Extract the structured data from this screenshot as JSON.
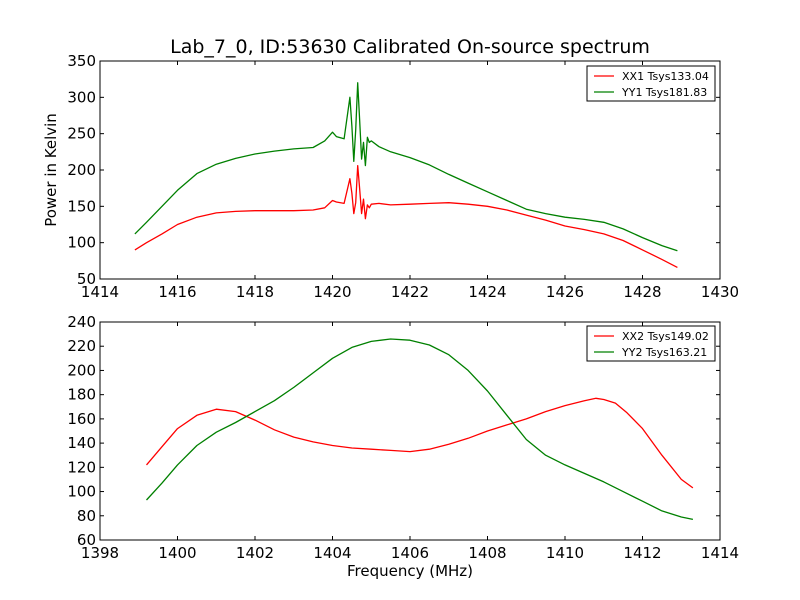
{
  "figure": {
    "title": "Lab_7_0, ID:53630 Calibrated On-source spectrum"
  },
  "chart_data": [
    {
      "type": "line",
      "xlabel": "",
      "ylabel": "Power in Kelvin",
      "xlim": [
        1414,
        1430
      ],
      "ylim": [
        50,
        350
      ],
      "xticks": [
        1414,
        1416,
        1418,
        1420,
        1422,
        1424,
        1426,
        1428,
        1430
      ],
      "yticks": [
        50,
        100,
        150,
        200,
        250,
        300,
        350
      ],
      "grid": false,
      "legend_position": "top-right",
      "series": [
        {
          "name": "XX1 Tsys133.04",
          "color": "#ff0000",
          "x": [
            1414.9,
            1415.2,
            1415.6,
            1416.0,
            1416.5,
            1417.0,
            1417.5,
            1418.0,
            1418.5,
            1419.0,
            1419.5,
            1419.8,
            1420.0,
            1420.1,
            1420.3,
            1420.45,
            1420.5,
            1420.55,
            1420.6,
            1420.65,
            1420.7,
            1420.75,
            1420.8,
            1420.85,
            1420.9,
            1420.95,
            1421.0,
            1421.2,
            1421.5,
            1422.0,
            1422.5,
            1423.0,
            1423.5,
            1424.0,
            1424.5,
            1425.0,
            1425.5,
            1426.0,
            1426.5,
            1427.0,
            1427.5,
            1428.0,
            1428.5,
            1428.9
          ],
          "y": [
            90,
            100,
            112,
            125,
            135,
            141,
            143,
            144,
            144,
            144,
            145,
            148,
            158,
            156,
            154,
            188,
            168,
            140,
            155,
            206,
            175,
            140,
            160,
            133,
            152,
            148,
            153,
            154,
            152,
            153,
            154,
            155,
            153,
            150,
            145,
            138,
            131,
            123,
            118,
            112,
            103,
            90,
            77,
            66
          ]
        },
        {
          "name": "YY1 Tsys181.83",
          "color": "#008000",
          "x": [
            1414.9,
            1415.2,
            1415.6,
            1416.0,
            1416.5,
            1417.0,
            1417.5,
            1418.0,
            1418.5,
            1419.0,
            1419.5,
            1419.8,
            1420.0,
            1420.1,
            1420.3,
            1420.45,
            1420.5,
            1420.55,
            1420.6,
            1420.65,
            1420.7,
            1420.75,
            1420.8,
            1420.85,
            1420.9,
            1420.95,
            1421.0,
            1421.2,
            1421.5,
            1422.0,
            1422.5,
            1423.0,
            1423.5,
            1424.0,
            1424.5,
            1425.0,
            1425.5,
            1426.0,
            1426.5,
            1427.0,
            1427.5,
            1428.0,
            1428.5,
            1428.9
          ],
          "y": [
            112,
            128,
            150,
            172,
            195,
            208,
            216,
            222,
            226,
            229,
            231,
            240,
            252,
            246,
            243,
            300,
            260,
            212,
            255,
            320,
            270,
            215,
            238,
            206,
            245,
            238,
            240,
            232,
            225,
            217,
            207,
            194,
            182,
            170,
            158,
            146,
            140,
            135,
            132,
            128,
            119,
            107,
            96,
            89
          ]
        }
      ]
    },
    {
      "type": "line",
      "xlabel": "Frequency (MHz)",
      "ylabel": "",
      "xlim": [
        1398,
        1414
      ],
      "ylim": [
        60,
        240
      ],
      "xticks": [
        1398,
        1400,
        1402,
        1404,
        1406,
        1408,
        1410,
        1412,
        1414
      ],
      "yticks": [
        60,
        80,
        100,
        120,
        140,
        160,
        180,
        200,
        220,
        240
      ],
      "grid": false,
      "legend_position": "top-right",
      "series": [
        {
          "name": "XX2 Tsys149.02",
          "color": "#ff0000",
          "x": [
            1399.2,
            1399.6,
            1400.0,
            1400.5,
            1401.0,
            1401.5,
            1402.0,
            1402.5,
            1403.0,
            1403.5,
            1404.0,
            1404.5,
            1405.0,
            1405.5,
            1406.0,
            1406.5,
            1407.0,
            1407.5,
            1408.0,
            1408.5,
            1409.0,
            1409.5,
            1410.0,
            1410.5,
            1410.8,
            1411.0,
            1411.3,
            1411.6,
            1412.0,
            1412.5,
            1413.0,
            1413.3
          ],
          "y": [
            122,
            137,
            152,
            163,
            168,
            166,
            159,
            151,
            145,
            141,
            138,
            136,
            135,
            134,
            133,
            135,
            139,
            144,
            150,
            155,
            160,
            166,
            171,
            175,
            177,
            176,
            173,
            165,
            152,
            130,
            110,
            103
          ]
        },
        {
          "name": "YY2 Tsys163.21",
          "color": "#008000",
          "x": [
            1399.2,
            1399.6,
            1400.0,
            1400.5,
            1401.0,
            1401.5,
            1402.0,
            1402.5,
            1403.0,
            1403.5,
            1404.0,
            1404.5,
            1405.0,
            1405.5,
            1406.0,
            1406.5,
            1407.0,
            1407.5,
            1408.0,
            1408.5,
            1409.0,
            1409.5,
            1410.0,
            1410.5,
            1411.0,
            1411.5,
            1412.0,
            1412.5,
            1413.0,
            1413.3
          ],
          "y": [
            93,
            107,
            122,
            138,
            149,
            157,
            166,
            175,
            186,
            198,
            210,
            219,
            224,
            226,
            225,
            221,
            213,
            200,
            183,
            163,
            143,
            130,
            122,
            115,
            108,
            100,
            92,
            84,
            79,
            77
          ]
        }
      ]
    }
  ]
}
